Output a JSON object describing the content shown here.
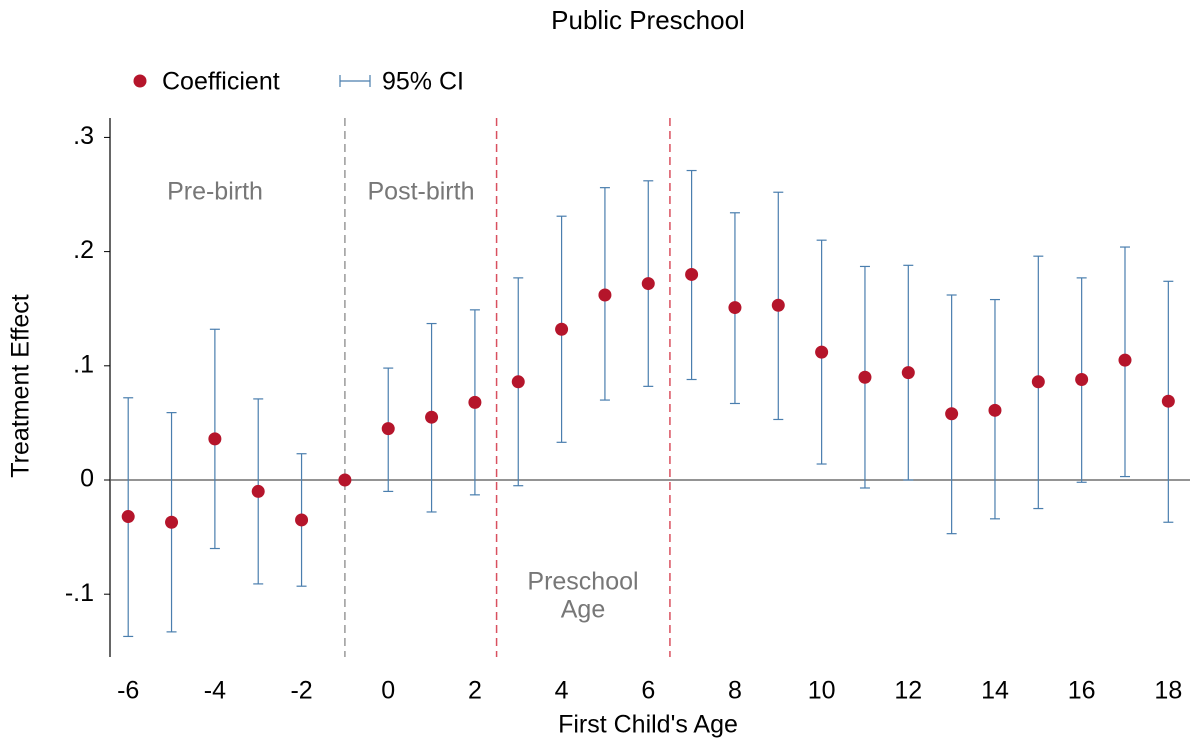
{
  "chart_data": {
    "type": "errorbar",
    "title": "Public Preschool",
    "x_label": "First Child's Age",
    "y_label": "Treatment Effect",
    "x": [
      -6,
      -5,
      -4,
      -3,
      -2,
      -1,
      0,
      1,
      2,
      3,
      4,
      5,
      6,
      7,
      8,
      9,
      10,
      11,
      12,
      13,
      14,
      15,
      16,
      17,
      18
    ],
    "series": [
      {
        "name": "Coefficient",
        "color": "#b5152b",
        "values": [
          -0.032,
          -0.037,
          0.036,
          -0.01,
          -0.035,
          0,
          0.045,
          0.055,
          0.068,
          0.086,
          0.132,
          0.162,
          0.172,
          0.18,
          0.151,
          0.153,
          0.112,
          0.09,
          0.094,
          0.058,
          0.061,
          0.086,
          0.088,
          0.105,
          0.069
        ]
      }
    ],
    "ci": {
      "name": "95% CI",
      "color": "#4a7eae",
      "lower": [
        -0.137,
        -0.133,
        -0.06,
        -0.091,
        -0.093,
        null,
        -0.01,
        -0.028,
        -0.013,
        -0.005,
        0.033,
        0.07,
        0.082,
        0.088,
        0.067,
        0.053,
        0.014,
        -0.007,
        0.0,
        -0.047,
        -0.034,
        -0.025,
        -0.002,
        0.003,
        -0.037
      ],
      "upper": [
        0.072,
        0.059,
        0.132,
        0.071,
        0.023,
        null,
        0.098,
        0.137,
        0.149,
        0.177,
        0.231,
        0.256,
        0.262,
        0.271,
        0.234,
        0.252,
        0.21,
        0.187,
        0.188,
        0.162,
        0.158,
        0.196,
        0.177,
        0.204,
        0.174
      ]
    },
    "xlim": [
      -6.42,
      18.5
    ],
    "ylim": [
      -0.155,
      0.317
    ],
    "xticks": [
      -6,
      -4,
      -2,
      0,
      2,
      4,
      6,
      8,
      10,
      12,
      14,
      16,
      18
    ],
    "yticks": [
      {
        "value": -0.1,
        "label": "-.1"
      },
      0,
      {
        "value": 0.1,
        "label": ".1"
      },
      {
        "value": 0.2,
        "label": ".2"
      },
      {
        "value": 0.3,
        "label": ".3"
      }
    ],
    "hline": 0,
    "vlines": [
      {
        "x": -1,
        "color": "#999999"
      },
      {
        "x": 2.5,
        "color": "#d9505f"
      },
      {
        "x": 6.5,
        "color": "#d9505f"
      }
    ],
    "annotations": [
      "Pre-birth",
      "Post-birth",
      "Preschool",
      "Age"
    ],
    "grid": false
  }
}
